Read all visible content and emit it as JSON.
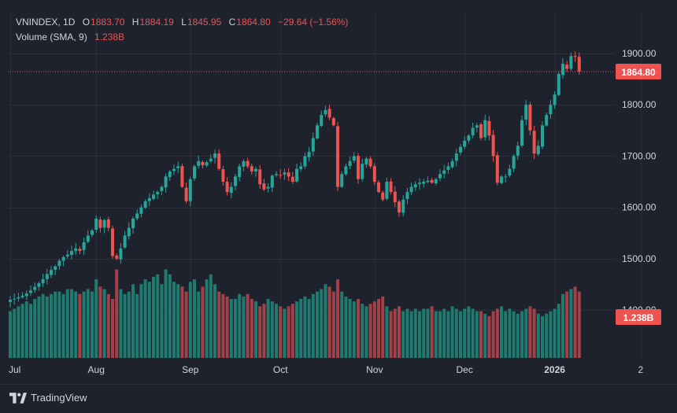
{
  "legend": {
    "symbol": "VNINDEX",
    "interval": "1D",
    "open_label": "O",
    "open": "1883.70",
    "high_label": "H",
    "high": "1884.19",
    "low_label": "L",
    "low": "1845.95",
    "close_label": "C",
    "close": "1864.80",
    "change": "−29.64 (−1.56%)",
    "volume_label": "Volume (SMA, 9)",
    "volume_value": "1.238B"
  },
  "price_tag": "1864.80",
  "volume_tag": "1.238B",
  "brand": "TradingView",
  "icons": {
    "logo": "tradingview-logo-icon"
  },
  "colors": {
    "background": "#1e222d",
    "up": "#26a69a",
    "down": "#ef5350",
    "up_volume": "#1f7a70",
    "down_volume": "#a3414a",
    "grid": "#2a2e39",
    "text": "#d1d4dc"
  },
  "chart_data": {
    "type": "candlestick",
    "title": "VNINDEX, 1D",
    "y_ticks": [
      "1900.00",
      "1800.00",
      "1700.00",
      "1600.00",
      "1500.00",
      "1400.00"
    ],
    "y_tick_values": [
      1900,
      1800,
      1700,
      1600,
      1500,
      1400
    ],
    "x_ticks": [
      "Jul",
      "Aug",
      "Sep",
      "Oct",
      "Nov",
      "Dec",
      "2026",
      "2"
    ],
    "x_tick_index": [
      0,
      21,
      44,
      66,
      89,
      111,
      133,
      154
    ],
    "last_price": 1864.8,
    "closes": [
      1420,
      1422,
      1425,
      1428,
      1432,
      1438,
      1445,
      1452,
      1460,
      1470,
      1478,
      1485,
      1496,
      1503,
      1508,
      1515,
      1520,
      1515,
      1532,
      1545,
      1555,
      1578,
      1560,
      1575,
      1560,
      1505,
      1500,
      1520,
      1545,
      1560,
      1578,
      1588,
      1600,
      1612,
      1618,
      1625,
      1630,
      1640,
      1660,
      1670,
      1675,
      1680,
      1640,
      1612,
      1655,
      1680,
      1690,
      1682,
      1688,
      1695,
      1705,
      1675,
      1650,
      1630,
      1640,
      1660,
      1680,
      1690,
      1680,
      1670,
      1675,
      1645,
      1635,
      1640,
      1662,
      1665,
      1662,
      1668,
      1660,
      1650,
      1675,
      1680,
      1700,
      1708,
      1735,
      1760,
      1780,
      1790,
      1775,
      1760,
      1640,
      1665,
      1680,
      1690,
      1700,
      1655,
      1685,
      1695,
      1680,
      1650,
      1630,
      1615,
      1650,
      1630,
      1610,
      1590,
      1615,
      1630,
      1640,
      1645,
      1648,
      1650,
      1652,
      1648,
      1655,
      1665,
      1672,
      1680,
      1690,
      1705,
      1718,
      1730,
      1740,
      1755,
      1760,
      1735,
      1770,
      1740,
      1700,
      1648,
      1660,
      1660,
      1675,
      1700,
      1720,
      1770,
      1800,
      1750,
      1705,
      1720,
      1760,
      1780,
      1800,
      1820,
      1860,
      1880,
      1870,
      1895,
      1894,
      1865
    ],
    "volumes": [
      0.95,
      1.0,
      1.05,
      1.1,
      1.15,
      1.1,
      1.2,
      1.25,
      1.3,
      1.25,
      1.3,
      1.35,
      1.35,
      1.3,
      1.4,
      1.4,
      1.35,
      1.3,
      1.35,
      1.4,
      1.35,
      1.6,
      1.45,
      1.4,
      1.3,
      1.2,
      1.8,
      1.4,
      1.3,
      1.35,
      1.5,
      1.3,
      1.5,
      1.6,
      1.55,
      1.65,
      1.7,
      1.5,
      1.8,
      1.7,
      1.55,
      1.5,
      1.45,
      1.35,
      1.55,
      1.6,
      1.35,
      1.45,
      1.6,
      1.7,
      1.5,
      1.35,
      1.3,
      1.25,
      1.2,
      1.2,
      1.3,
      1.25,
      1.3,
      1.2,
      1.15,
      1.05,
      1.1,
      1.2,
      1.15,
      1.1,
      1.05,
      1.0,
      1.05,
      1.1,
      1.15,
      1.2,
      1.25,
      1.2,
      1.3,
      1.35,
      1.4,
      1.5,
      1.45,
      1.35,
      1.6,
      1.35,
      1.25,
      1.2,
      1.15,
      1.2,
      1.1,
      1.05,
      1.1,
      1.15,
      1.2,
      1.25,
      1.05,
      0.95,
      1.0,
      1.05,
      0.95,
      1.0,
      0.95,
      1.0,
      0.95,
      1.0,
      1.0,
      1.05,
      0.95,
      0.95,
      1.0,
      0.95,
      1.05,
      1.0,
      0.95,
      1.0,
      1.05,
      1.0,
      0.95,
      0.95,
      0.9,
      0.85,
      0.95,
      1.0,
      1.05,
      0.95,
      1.0,
      0.95,
      0.9,
      0.95,
      1.0,
      1.05,
      1.0,
      0.9,
      0.85,
      0.9,
      0.95,
      1.0,
      1.1,
      1.3,
      1.35,
      1.4,
      1.45,
      1.35
    ]
  }
}
